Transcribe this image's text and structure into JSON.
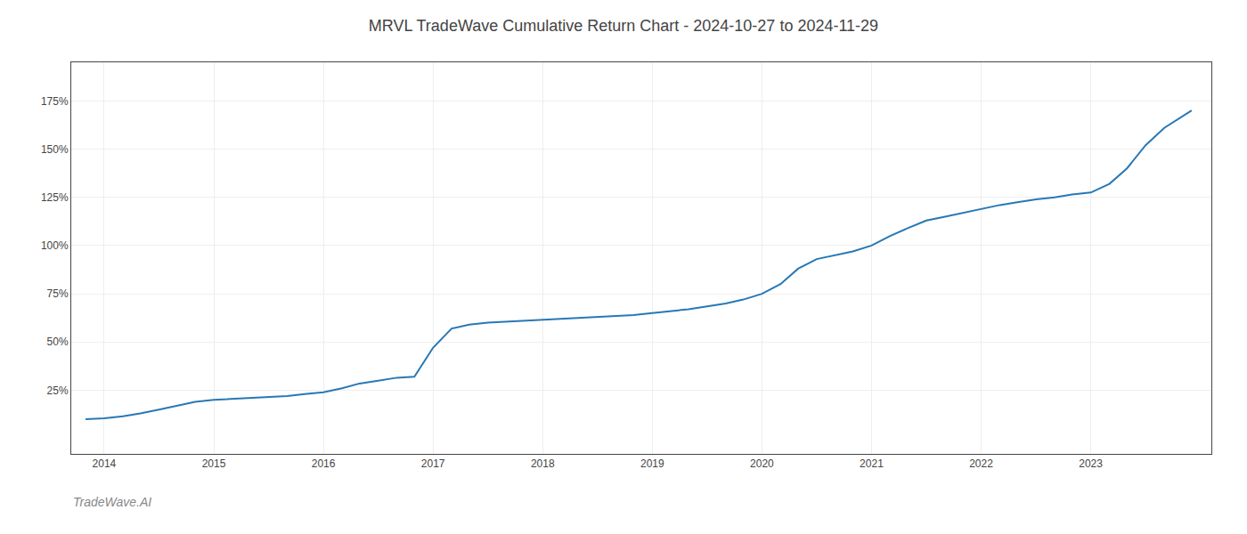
{
  "chart_data": {
    "type": "line",
    "title": "MRVL TradeWave Cumulative Return Chart - 2024-10-27 to 2024-11-29",
    "annotations": [
      "TradeWave.AI"
    ],
    "color": "#2878b5",
    "grid": true,
    "x": [
      2013.83,
      2014.0,
      2014.17,
      2014.33,
      2014.5,
      2014.67,
      2014.83,
      2015.0,
      2015.17,
      2015.33,
      2015.5,
      2015.67,
      2015.83,
      2016.0,
      2016.17,
      2016.33,
      2016.5,
      2016.67,
      2016.83,
      2017.0,
      2017.17,
      2017.33,
      2017.5,
      2017.67,
      2017.83,
      2018.0,
      2018.17,
      2018.33,
      2018.5,
      2018.67,
      2018.83,
      2019.0,
      2019.17,
      2019.33,
      2019.5,
      2019.67,
      2019.83,
      2020.0,
      2020.17,
      2020.33,
      2020.5,
      2020.67,
      2020.83,
      2021.0,
      2021.17,
      2021.33,
      2021.5,
      2021.67,
      2021.83,
      2022.0,
      2022.17,
      2022.33,
      2022.5,
      2022.67,
      2022.83,
      2023.0,
      2023.17,
      2023.33,
      2023.5,
      2023.67,
      2023.83,
      2023.92
    ],
    "values": [
      10.0,
      10.5,
      11.5,
      13.0,
      15.0,
      17.0,
      19.0,
      20.0,
      20.5,
      21.0,
      21.5,
      22.0,
      23.0,
      24.0,
      26.0,
      28.5,
      30.0,
      31.5,
      32.0,
      47.0,
      57.0,
      59.0,
      60.0,
      60.5,
      61.0,
      61.5,
      62.0,
      62.5,
      63.0,
      63.5,
      64.0,
      65.0,
      66.0,
      67.0,
      68.5,
      70.0,
      72.0,
      75.0,
      80.0,
      88.0,
      93.0,
      95.0,
      97.0,
      100.0,
      105.0,
      109.0,
      113.0,
      115.0,
      117.0,
      119.0,
      121.0,
      122.5,
      124.0,
      125.0,
      126.5,
      127.5,
      132.0,
      140.0,
      152.0,
      161.0,
      167.0,
      170.0
    ],
    "xlim": [
      2013.7,
      2024.1
    ],
    "xticks": [
      2014,
      2015,
      2016,
      2017,
      2018,
      2019,
      2020,
      2021,
      2022,
      2023
    ],
    "ylim": [
      -8,
      195
    ],
    "yticks": [
      {
        "value": 25,
        "label": "25%"
      },
      {
        "value": 50,
        "label": "50%"
      },
      {
        "value": 75,
        "label": "75%"
      },
      {
        "value": 100,
        "label": "100%"
      },
      {
        "value": 125,
        "label": "125%"
      },
      {
        "value": 150,
        "label": "150%"
      },
      {
        "value": 175,
        "label": "175%"
      }
    ]
  }
}
